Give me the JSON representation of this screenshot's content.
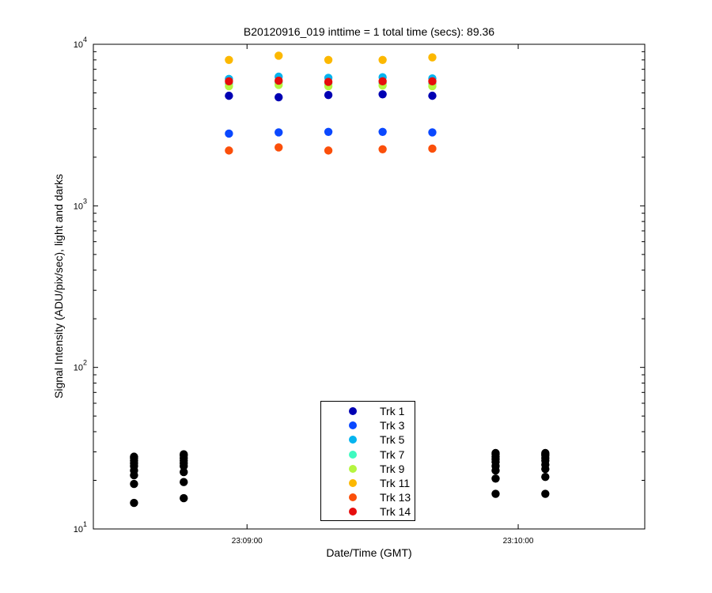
{
  "chart_data": {
    "type": "scatter",
    "title": "B20120916_019 inttime = 1 total time (secs): 89.36",
    "xlabel": "Date/Time (GMT)",
    "ylabel": "Signal Intensity (ADU/pix/sec), light and darks",
    "yscale": "log",
    "ylim": [
      10,
      10000
    ],
    "xlim": [
      "23:08:26",
      "23:10:28"
    ],
    "grid": false,
    "legend_position": "bottom-center",
    "x_ticks": [
      "23:09:00",
      "23:10:00"
    ],
    "y_ticks": [
      {
        "value": 10,
        "base": "10",
        "exp": "1"
      },
      {
        "value": 100,
        "base": "10",
        "exp": "2"
      },
      {
        "value": 1000,
        "base": "10",
        "exp": "3"
      },
      {
        "value": 10000,
        "base": "10",
        "exp": "4"
      }
    ],
    "light_x": [
      "23:08:56",
      "23:09:07",
      "23:09:18",
      "23:09:30",
      "23:09:41"
    ],
    "series": [
      {
        "name": "Trk 1",
        "color": "#0000b3",
        "values": [
          4800,
          4700,
          4850,
          4900,
          4800
        ]
      },
      {
        "name": "Trk 3",
        "color": "#0a48ff",
        "values": [
          2800,
          2850,
          2870,
          2870,
          2850
        ]
      },
      {
        "name": "Trk 5",
        "color": "#05b4ef",
        "values": [
          6100,
          6300,
          6200,
          6250,
          6150
        ]
      },
      {
        "name": "Trk 7",
        "color": "#3ffac0",
        "values": [
          5700,
          5800,
          5700,
          5750,
          5700
        ]
      },
      {
        "name": "Trk 9",
        "color": "#b5f53f",
        "values": [
          5500,
          5600,
          5500,
          5550,
          5500
        ]
      },
      {
        "name": "Trk 11",
        "color": "#fcb800",
        "values": [
          8000,
          8500,
          8000,
          8000,
          8300
        ]
      },
      {
        "name": "Trk 13",
        "color": "#fb4f0a",
        "values": [
          2200,
          2300,
          2200,
          2240,
          2260
        ]
      },
      {
        "name": "Trk 14",
        "color": "#e60d0d",
        "values": [
          5900,
          5950,
          5850,
          5900,
          5900
        ]
      }
    ],
    "darks": {
      "color": "#000000",
      "groups": [
        {
          "x": "23:08:35",
          "values": [
            14.5,
            19,
            21.5,
            23,
            24.5,
            25.5,
            26.5,
            27.5,
            28
          ]
        },
        {
          "x": "23:08:46",
          "values": [
            15.5,
            19.5,
            22.5,
            24.5,
            25.5,
            26.5,
            27.5,
            28.5,
            29
          ]
        },
        {
          "x": "23:09:55",
          "values": [
            16.5,
            20.5,
            23,
            24.5,
            26,
            27,
            28,
            29,
            29.5
          ]
        },
        {
          "x": "23:10:06",
          "values": [
            16.5,
            21,
            23.5,
            25,
            26.5,
            27.5,
            28.5,
            29,
            29.5
          ]
        }
      ]
    }
  }
}
